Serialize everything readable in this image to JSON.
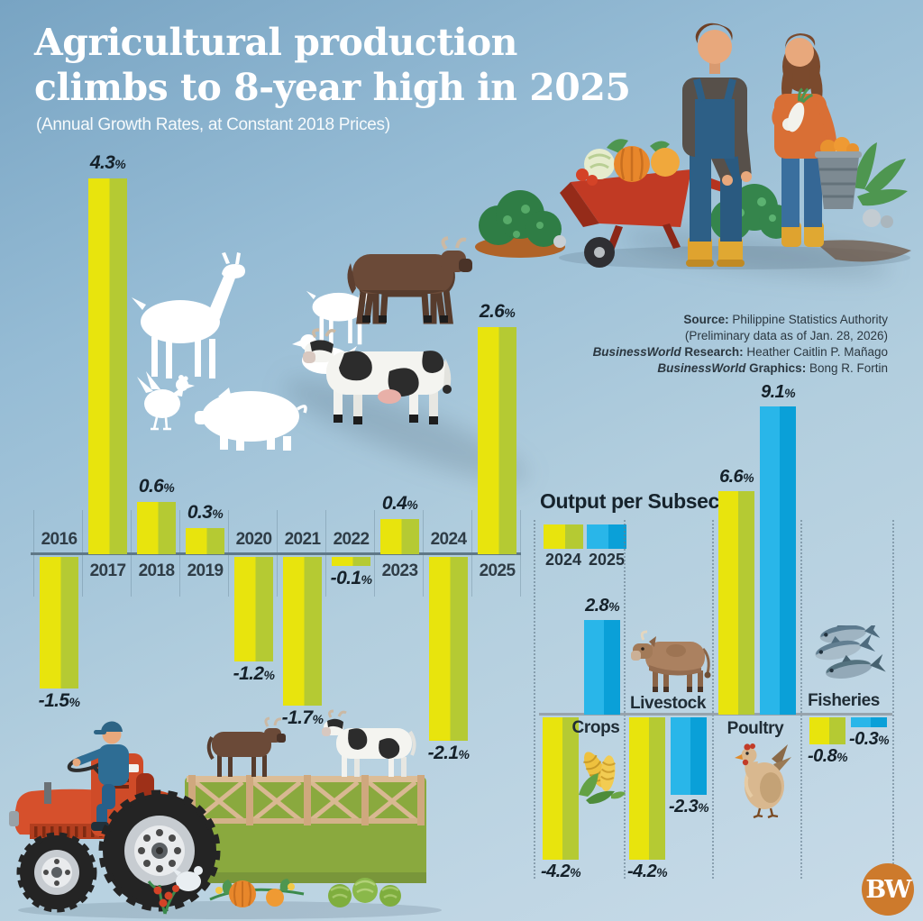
{
  "header": {
    "title_lines": [
      "Agricultural production",
      "climbs to 8-year high in 2025"
    ],
    "subtitle": "(Annual Growth Rates, at Constant 2018 Prices)"
  },
  "source": {
    "label": "Source:",
    "value": " Philippine Statistics Authority",
    "note": "(Preliminary data as of Jan. 28, 2026)",
    "research_brand": "BusinessWorld",
    "research_label": " Research:",
    "research_value": " Heather Caitlin P. Mañago",
    "graphics_brand": "BusinessWorld",
    "graphics_label": " Graphics:",
    "graphics_value": " Bong R. Fortin"
  },
  "subsector": {
    "title": "Output per Subsector"
  },
  "logo": {
    "text": "BW",
    "color": "#cd7a2c"
  },
  "colors": {
    "bar_yellow_left": "#e8e40d",
    "bar_yellow_right": "#b5ca33",
    "bar_blue_left": "#29b6e9",
    "bar_blue_right": "#0aa0d8",
    "background_top": "#78a4c3",
    "background_bottom": "#c8dbe8",
    "value_text": "#15212a"
  },
  "illustrations": {
    "top_right": "farmers-with-wheelbarrow-of-vegetables",
    "middle_left": "farm-animal-silhouettes-with-carabao-and-dairy-cow",
    "bottom_left": "tractor-pulling-livestock-trailer",
    "subsector_icons": [
      "corn",
      "cow",
      "hen",
      "fishes"
    ],
    "logo": "businessworld-bw-medallion"
  },
  "chart_data": [
    {
      "type": "bar",
      "title": "Annual Growth Rates, at Constant 2018 Prices",
      "categories": [
        "2016",
        "2017",
        "2018",
        "2019",
        "2020",
        "2021",
        "2022",
        "2023",
        "2024",
        "2025"
      ],
      "values": [
        -1.5,
        4.3,
        0.6,
        0.3,
        -1.2,
        -1.7,
        -0.1,
        0.4,
        -2.1,
        2.6
      ],
      "unit": "%",
      "xlabel": "",
      "ylabel": "",
      "ylim": [
        -2.5,
        4.5
      ],
      "grid": "faint-vertical-ticks",
      "legend_position": "none",
      "value_labels": "on"
    },
    {
      "type": "bar",
      "title": "Output per Subsector",
      "categories": [
        "Crops",
        "Livestock",
        "Poultry",
        "Fisheries"
      ],
      "series": [
        {
          "name": "2024",
          "values": [
            -4.2,
            -4.2,
            6.6,
            -0.8
          ]
        },
        {
          "name": "2025",
          "values": [
            2.8,
            -2.3,
            9.1,
            -0.3
          ]
        }
      ],
      "unit": "%",
      "ylim": [
        -5,
        10
      ],
      "grid": "dotted-group-dividers",
      "legend_position": "top-left",
      "value_labels": "on",
      "label_sides": [
        "below",
        "above",
        "below",
        "above"
      ]
    }
  ]
}
